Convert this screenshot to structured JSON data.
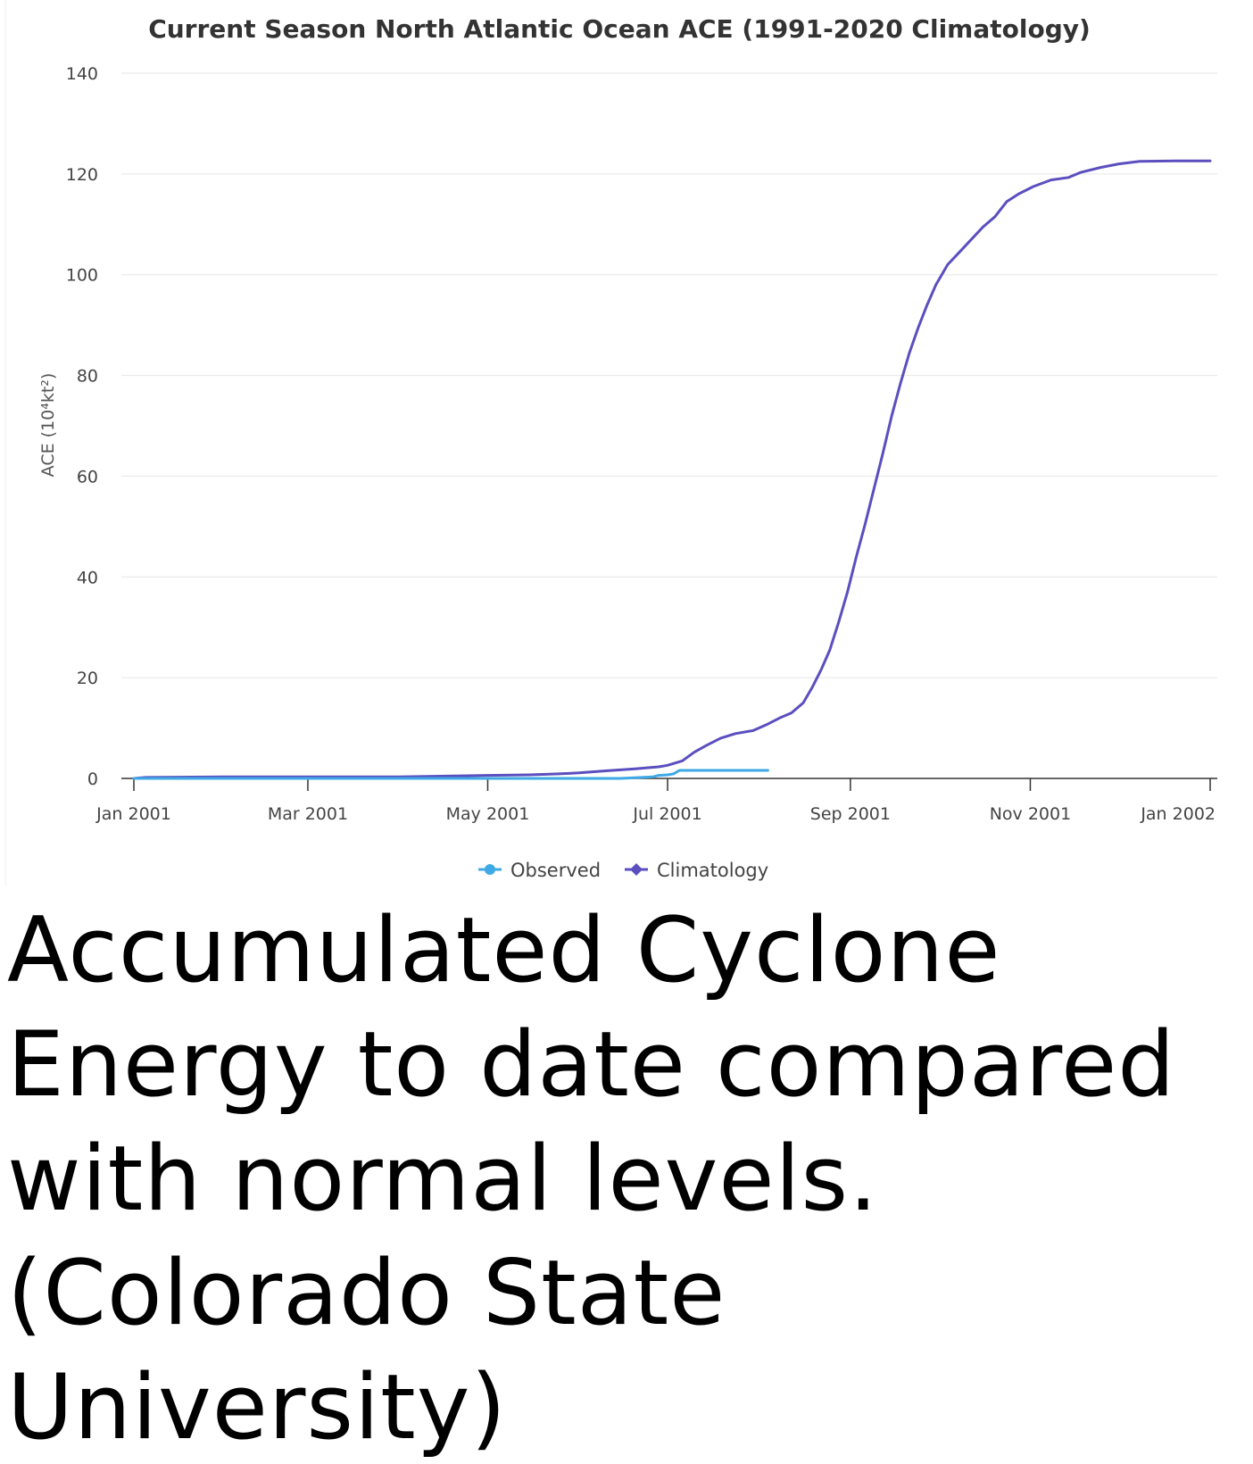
{
  "chart_data": {
    "type": "line",
    "title": "Current Season North Atlantic Ocean ACE (1991-2020 Climatology)",
    "ylabel": "ACE (10⁴kt²)",
    "xlabel": "",
    "ylim": [
      0,
      140
    ],
    "yticks": [
      0,
      20,
      40,
      60,
      80,
      100,
      120,
      140
    ],
    "xlim": [
      "2001-01-01",
      "2002-01-01"
    ],
    "xticks": [
      {
        "date": "2001-01-01",
        "label": "Jan 2001"
      },
      {
        "date": "2001-03-01",
        "label": "Mar 2001"
      },
      {
        "date": "2001-05-01",
        "label": "May 2001"
      },
      {
        "date": "2001-07-01",
        "label": "Jul 2001"
      },
      {
        "date": "2001-09-01",
        "label": "Sep 2001"
      },
      {
        "date": "2001-11-01",
        "label": "Nov 2001"
      },
      {
        "date": "2002-01-01",
        "label": "Jan 2002"
      }
    ],
    "grid": true,
    "legend": "bottom-center",
    "series": [
      {
        "name": "Observed",
        "color": "#3fa9e6",
        "points": [
          [
            "2001-01-01",
            0
          ],
          [
            "2001-03-01",
            0
          ],
          [
            "2001-05-01",
            0
          ],
          [
            "2001-06-15",
            0
          ],
          [
            "2001-06-26",
            0.3
          ],
          [
            "2001-06-28",
            0.6
          ],
          [
            "2001-07-01",
            0.7
          ],
          [
            "2001-07-03",
            0.9
          ],
          [
            "2001-07-05",
            1.6
          ],
          [
            "2001-07-10",
            1.6
          ],
          [
            "2001-07-20",
            1.6
          ],
          [
            "2001-07-30",
            1.6
          ],
          [
            "2001-08-04",
            1.6
          ]
        ]
      },
      {
        "name": "Climatology",
        "color": "#5b4fbf",
        "points": [
          [
            "2001-01-01",
            0
          ],
          [
            "2001-01-05",
            0.2
          ],
          [
            "2001-02-01",
            0.3
          ],
          [
            "2001-03-01",
            0.3
          ],
          [
            "2001-04-01",
            0.3
          ],
          [
            "2001-04-20",
            0.5
          ],
          [
            "2001-05-01",
            0.6
          ],
          [
            "2001-05-15",
            0.7
          ],
          [
            "2001-05-25",
            0.9
          ],
          [
            "2001-06-01",
            1.1
          ],
          [
            "2001-06-10",
            1.5
          ],
          [
            "2001-06-20",
            1.9
          ],
          [
            "2001-06-28",
            2.3
          ],
          [
            "2001-07-01",
            2.6
          ],
          [
            "2001-07-06",
            3.5
          ],
          [
            "2001-07-10",
            5.2
          ],
          [
            "2001-07-14",
            6.5
          ],
          [
            "2001-07-19",
            8.0
          ],
          [
            "2001-07-24",
            8.9
          ],
          [
            "2001-07-30",
            9.5
          ],
          [
            "2001-08-04",
            10.8
          ],
          [
            "2001-08-08",
            12.0
          ],
          [
            "2001-08-12",
            13.0
          ],
          [
            "2001-08-16",
            15.0
          ],
          [
            "2001-08-19",
            18.0
          ],
          [
            "2001-08-22",
            21.5
          ],
          [
            "2001-08-25",
            25.5
          ],
          [
            "2001-08-28",
            31.0
          ],
          [
            "2001-08-31",
            37.0
          ],
          [
            "2001-09-03",
            44.0
          ],
          [
            "2001-09-06",
            50.5
          ],
          [
            "2001-09-09",
            57.5
          ],
          [
            "2001-09-12",
            64.5
          ],
          [
            "2001-09-15",
            72.0
          ],
          [
            "2001-09-18",
            78.5
          ],
          [
            "2001-09-21",
            84.5
          ],
          [
            "2001-09-24",
            89.5
          ],
          [
            "2001-09-27",
            94.0
          ],
          [
            "2001-09-30",
            98.0
          ],
          [
            "2001-10-04",
            102.0
          ],
          [
            "2001-10-08",
            104.5
          ],
          [
            "2001-10-12",
            107.0
          ],
          [
            "2001-10-16",
            109.5
          ],
          [
            "2001-10-20",
            111.5
          ],
          [
            "2001-10-24",
            114.5
          ],
          [
            "2001-10-28",
            116.0
          ],
          [
            "2001-11-02",
            117.5
          ],
          [
            "2001-11-08",
            118.8
          ],
          [
            "2001-11-14",
            119.3
          ],
          [
            "2001-11-18",
            120.3
          ],
          [
            "2001-11-25",
            121.3
          ],
          [
            "2001-12-01",
            122.0
          ],
          [
            "2001-12-08",
            122.5
          ],
          [
            "2001-12-20",
            122.6
          ],
          [
            "2002-01-01",
            122.6
          ]
        ]
      }
    ]
  },
  "caption": "Accumulated Cyclone Energy to date compared with normal levels. (Colorado State University)"
}
